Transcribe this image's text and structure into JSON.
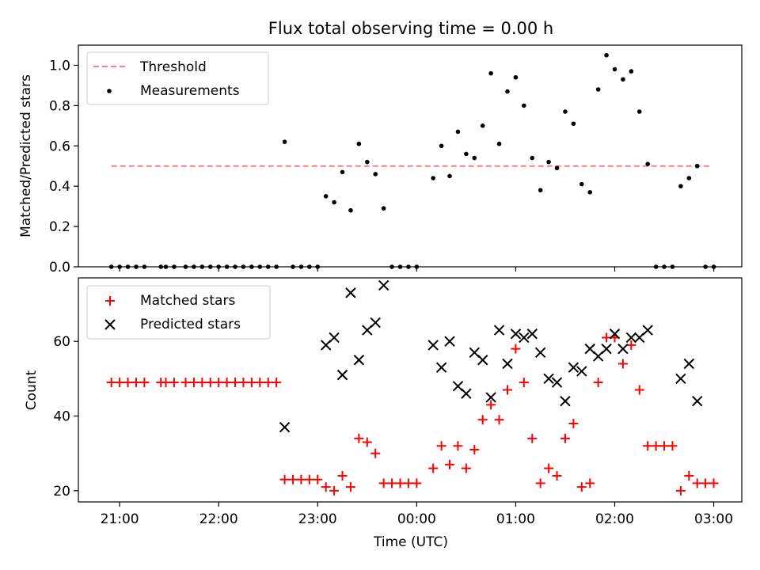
{
  "chart_data": [
    {
      "type": "scatter",
      "title": "Flux total observing time = 0.00 h",
      "xlabel": "",
      "ylabel": "Matched/Predicted stars",
      "xlim": [
        "20:35",
        "03:17"
      ],
      "ylim": [
        0,
        1.1
      ],
      "yticks": [
        "0.0",
        "0.2",
        "0.4",
        "0.6",
        "0.8",
        "1.0"
      ],
      "legend_position": "upper-left",
      "threshold": {
        "name": "Threshold",
        "value": 0.5,
        "x_range": [
          "20:55",
          "02:58"
        ],
        "color": "#ff7f7f",
        "style": "dashed"
      },
      "series": [
        {
          "name": "Measurements",
          "color": "#000000",
          "marker": "dot",
          "points": [
            {
              "x": "20:55",
              "y": 0
            },
            {
              "x": "21:00",
              "y": 0
            },
            {
              "x": "21:05",
              "y": 0
            },
            {
              "x": "21:10",
              "y": 0
            },
            {
              "x": "21:15",
              "y": 0
            },
            {
              "x": "21:25",
              "y": 0
            },
            {
              "x": "21:28",
              "y": 0
            },
            {
              "x": "21:33",
              "y": 0
            },
            {
              "x": "21:40",
              "y": 0
            },
            {
              "x": "21:45",
              "y": 0
            },
            {
              "x": "21:50",
              "y": 0
            },
            {
              "x": "21:55",
              "y": 0
            },
            {
              "x": "22:00",
              "y": 0
            },
            {
              "x": "22:05",
              "y": 0
            },
            {
              "x": "22:10",
              "y": 0
            },
            {
              "x": "22:15",
              "y": 0
            },
            {
              "x": "22:20",
              "y": 0
            },
            {
              "x": "22:25",
              "y": 0
            },
            {
              "x": "22:30",
              "y": 0
            },
            {
              "x": "22:35",
              "y": 0
            },
            {
              "x": "22:40",
              "y": 0.62
            },
            {
              "x": "22:45",
              "y": 0
            },
            {
              "x": "22:50",
              "y": 0
            },
            {
              "x": "22:55",
              "y": 0
            },
            {
              "x": "23:00",
              "y": 0
            },
            {
              "x": "23:05",
              "y": 0.35
            },
            {
              "x": "23:10",
              "y": 0.32
            },
            {
              "x": "23:15",
              "y": 0.47
            },
            {
              "x": "23:20",
              "y": 0.28
            },
            {
              "x": "23:25",
              "y": 0.61
            },
            {
              "x": "23:30",
              "y": 0.52
            },
            {
              "x": "23:35",
              "y": 0.46
            },
            {
              "x": "23:40",
              "y": 0.29
            },
            {
              "x": "23:45",
              "y": 0
            },
            {
              "x": "23:50",
              "y": 0
            },
            {
              "x": "23:55",
              "y": 0
            },
            {
              "x": "00:00",
              "y": 0
            },
            {
              "x": "00:10",
              "y": 0.44
            },
            {
              "x": "00:15",
              "y": 0.6
            },
            {
              "x": "00:20",
              "y": 0.45
            },
            {
              "x": "00:25",
              "y": 0.67
            },
            {
              "x": "00:30",
              "y": 0.56
            },
            {
              "x": "00:35",
              "y": 0.54
            },
            {
              "x": "00:40",
              "y": 0.7
            },
            {
              "x": "00:45",
              "y": 0.96
            },
            {
              "x": "00:50",
              "y": 0.61
            },
            {
              "x": "00:55",
              "y": 0.87
            },
            {
              "x": "01:00",
              "y": 0.94
            },
            {
              "x": "01:05",
              "y": 0.8
            },
            {
              "x": "01:10",
              "y": 0.54
            },
            {
              "x": "01:15",
              "y": 0.38
            },
            {
              "x": "01:20",
              "y": 0.52
            },
            {
              "x": "01:25",
              "y": 0.49
            },
            {
              "x": "01:30",
              "y": 0.77
            },
            {
              "x": "01:35",
              "y": 0.71
            },
            {
              "x": "01:40",
              "y": 0.41
            },
            {
              "x": "01:45",
              "y": 0.37
            },
            {
              "x": "01:50",
              "y": 0.88
            },
            {
              "x": "01:55",
              "y": 1.05
            },
            {
              "x": "02:00",
              "y": 0.98
            },
            {
              "x": "02:05",
              "y": 0.93
            },
            {
              "x": "02:10",
              "y": 0.97
            },
            {
              "x": "02:15",
              "y": 0.77
            },
            {
              "x": "02:20",
              "y": 0.51
            },
            {
              "x": "02:25",
              "y": 0
            },
            {
              "x": "02:30",
              "y": 0
            },
            {
              "x": "02:35",
              "y": 0
            },
            {
              "x": "02:40",
              "y": 0.4
            },
            {
              "x": "02:45",
              "y": 0.44
            },
            {
              "x": "02:50",
              "y": 0.5
            },
            {
              "x": "02:55",
              "y": 0
            },
            {
              "x": "03:00",
              "y": 0
            }
          ]
        }
      ]
    },
    {
      "type": "scatter",
      "title": "",
      "xlabel": "Time (UTC)",
      "ylabel": "Count",
      "xlim": [
        "20:35",
        "03:17"
      ],
      "ylim": [
        17,
        77
      ],
      "yticks": [
        "20",
        "40",
        "60"
      ],
      "xticks": [
        "21:00",
        "22:00",
        "23:00",
        "00:00",
        "01:00",
        "02:00",
        "03:00"
      ],
      "legend_position": "upper-left",
      "series": [
        {
          "name": "Matched stars",
          "color": "#ff0000",
          "marker": "plus",
          "points": [
            {
              "x": "20:55",
              "y": 49
            },
            {
              "x": "21:00",
              "y": 49
            },
            {
              "x": "21:05",
              "y": 49
            },
            {
              "x": "21:10",
              "y": 49
            },
            {
              "x": "21:15",
              "y": 49
            },
            {
              "x": "21:25",
              "y": 49
            },
            {
              "x": "21:28",
              "y": 49
            },
            {
              "x": "21:33",
              "y": 49
            },
            {
              "x": "21:40",
              "y": 49
            },
            {
              "x": "21:45",
              "y": 49
            },
            {
              "x": "21:50",
              "y": 49
            },
            {
              "x": "21:55",
              "y": 49
            },
            {
              "x": "22:00",
              "y": 49
            },
            {
              "x": "22:05",
              "y": 49
            },
            {
              "x": "22:10",
              "y": 49
            },
            {
              "x": "22:15",
              "y": 49
            },
            {
              "x": "22:20",
              "y": 49
            },
            {
              "x": "22:25",
              "y": 49
            },
            {
              "x": "22:30",
              "y": 49
            },
            {
              "x": "22:35",
              "y": 49
            },
            {
              "x": "22:40",
              "y": 23
            },
            {
              "x": "22:45",
              "y": 23
            },
            {
              "x": "22:50",
              "y": 23
            },
            {
              "x": "22:55",
              "y": 23
            },
            {
              "x": "23:00",
              "y": 23
            },
            {
              "x": "23:05",
              "y": 21
            },
            {
              "x": "23:10",
              "y": 20
            },
            {
              "x": "23:15",
              "y": 24
            },
            {
              "x": "23:20",
              "y": 21
            },
            {
              "x": "23:25",
              "y": 34
            },
            {
              "x": "23:30",
              "y": 33
            },
            {
              "x": "23:35",
              "y": 30
            },
            {
              "x": "23:40",
              "y": 22
            },
            {
              "x": "23:45",
              "y": 22
            },
            {
              "x": "23:50",
              "y": 22
            },
            {
              "x": "23:55",
              "y": 22
            },
            {
              "x": "00:00",
              "y": 22
            },
            {
              "x": "00:10",
              "y": 26
            },
            {
              "x": "00:15",
              "y": 32
            },
            {
              "x": "00:20",
              "y": 27
            },
            {
              "x": "00:25",
              "y": 32
            },
            {
              "x": "00:30",
              "y": 26
            },
            {
              "x": "00:35",
              "y": 31
            },
            {
              "x": "00:40",
              "y": 39
            },
            {
              "x": "00:45",
              "y": 43
            },
            {
              "x": "00:50",
              "y": 39
            },
            {
              "x": "00:55",
              "y": 47
            },
            {
              "x": "01:00",
              "y": 58
            },
            {
              "x": "01:05",
              "y": 49
            },
            {
              "x": "01:10",
              "y": 34
            },
            {
              "x": "01:15",
              "y": 22
            },
            {
              "x": "01:20",
              "y": 26
            },
            {
              "x": "01:25",
              "y": 24
            },
            {
              "x": "01:30",
              "y": 34
            },
            {
              "x": "01:35",
              "y": 38
            },
            {
              "x": "01:40",
              "y": 21
            },
            {
              "x": "01:45",
              "y": 22
            },
            {
              "x": "01:50",
              "y": 49
            },
            {
              "x": "01:55",
              "y": 61
            },
            {
              "x": "02:00",
              "y": 61
            },
            {
              "x": "02:05",
              "y": 54
            },
            {
              "x": "02:10",
              "y": 59
            },
            {
              "x": "02:15",
              "y": 47
            },
            {
              "x": "02:20",
              "y": 32
            },
            {
              "x": "02:25",
              "y": 32
            },
            {
              "x": "02:30",
              "y": 32
            },
            {
              "x": "02:35",
              "y": 32
            },
            {
              "x": "02:40",
              "y": 20
            },
            {
              "x": "02:45",
              "y": 24
            },
            {
              "x": "02:50",
              "y": 22
            },
            {
              "x": "02:55",
              "y": 22
            },
            {
              "x": "03:00",
              "y": 22
            }
          ]
        },
        {
          "name": "Predicted stars",
          "color": "#000000",
          "marker": "x",
          "points": [
            {
              "x": "22:40",
              "y": 37
            },
            {
              "x": "23:05",
              "y": 59
            },
            {
              "x": "23:10",
              "y": 61
            },
            {
              "x": "23:15",
              "y": 51
            },
            {
              "x": "23:20",
              "y": 73
            },
            {
              "x": "23:25",
              "y": 55
            },
            {
              "x": "23:30",
              "y": 63
            },
            {
              "x": "23:35",
              "y": 65
            },
            {
              "x": "23:40",
              "y": 75
            },
            {
              "x": "00:10",
              "y": 59
            },
            {
              "x": "00:15",
              "y": 53
            },
            {
              "x": "00:20",
              "y": 60
            },
            {
              "x": "00:25",
              "y": 48
            },
            {
              "x": "00:30",
              "y": 46
            },
            {
              "x": "00:35",
              "y": 57
            },
            {
              "x": "00:40",
              "y": 55
            },
            {
              "x": "00:45",
              "y": 45
            },
            {
              "x": "00:50",
              "y": 63
            },
            {
              "x": "00:55",
              "y": 54
            },
            {
              "x": "01:00",
              "y": 62
            },
            {
              "x": "01:05",
              "y": 61
            },
            {
              "x": "01:10",
              "y": 62
            },
            {
              "x": "01:15",
              "y": 57
            },
            {
              "x": "01:20",
              "y": 50
            },
            {
              "x": "01:25",
              "y": 49
            },
            {
              "x": "01:30",
              "y": 44
            },
            {
              "x": "01:35",
              "y": 53
            },
            {
              "x": "01:40",
              "y": 52
            },
            {
              "x": "01:45",
              "y": 58
            },
            {
              "x": "01:50",
              "y": 56
            },
            {
              "x": "01:55",
              "y": 58
            },
            {
              "x": "02:00",
              "y": 62
            },
            {
              "x": "02:05",
              "y": 58
            },
            {
              "x": "02:10",
              "y": 61
            },
            {
              "x": "02:15",
              "y": 61
            },
            {
              "x": "02:20",
              "y": 63
            },
            {
              "x": "02:40",
              "y": 50
            },
            {
              "x": "02:45",
              "y": 54
            },
            {
              "x": "02:50",
              "y": 44
            }
          ]
        }
      ]
    }
  ]
}
